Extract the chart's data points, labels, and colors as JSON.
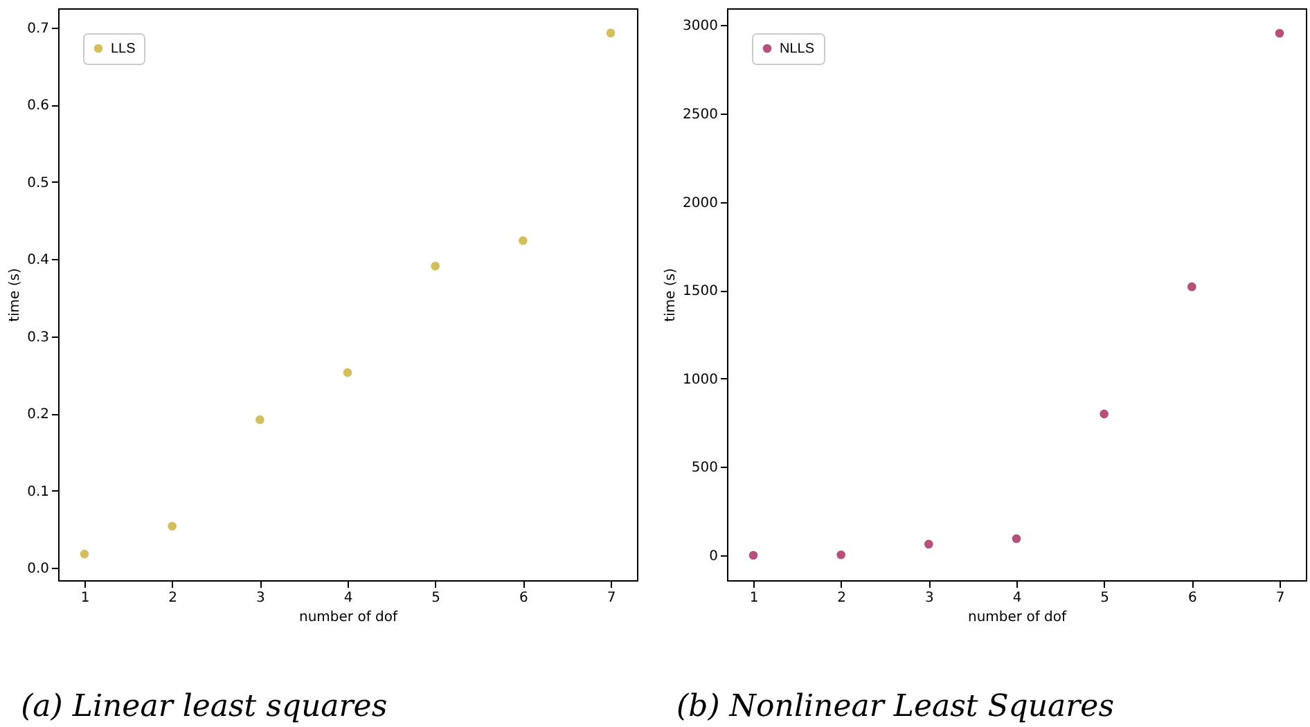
{
  "chart_data": [
    {
      "type": "scatter",
      "title": "(a) Linear least squares",
      "xlabel": "number of dof",
      "ylabel": "time (s)",
      "x": [
        1,
        2,
        3,
        4,
        5,
        6,
        7
      ],
      "xlim": [
        0.7,
        7.3
      ],
      "xticks": [
        1,
        2,
        3,
        4,
        5,
        6,
        7
      ],
      "ylim": [
        -0.016,
        0.725
      ],
      "yticks": [
        {
          "value": 0,
          "label": "0.0"
        },
        0.1,
        0.2,
        0.3,
        0.4,
        0.5,
        0.6,
        0.7
      ],
      "legend": "top left",
      "marker": "circle",
      "grid": false,
      "series": [
        {
          "name": "LLS",
          "color": "#d4bf60",
          "values": [
            0.018,
            0.054,
            0.192,
            0.253,
            0.391,
            0.424,
            0.693
          ]
        }
      ]
    },
    {
      "type": "scatter",
      "title": "(b) Nonlinear Least Squares",
      "xlabel": "number of dof",
      "ylabel": "time (s)",
      "x": [
        1,
        2,
        3,
        4,
        5,
        6,
        7
      ],
      "xlim": [
        0.7,
        7.3
      ],
      "xticks": [
        1,
        2,
        3,
        4,
        5,
        6,
        7
      ],
      "ylim": [
        -141,
        3096
      ],
      "yticks": [
        0,
        500,
        1000,
        1500,
        2000,
        2500,
        3000
      ],
      "legend": "top left",
      "marker": "circle",
      "grid": false,
      "series": [
        {
          "name": "NLLS",
          "color": "#b5527c",
          "values": [
            0,
            3,
            63,
            94,
            800,
            1520,
            2955
          ]
        }
      ]
    }
  ]
}
